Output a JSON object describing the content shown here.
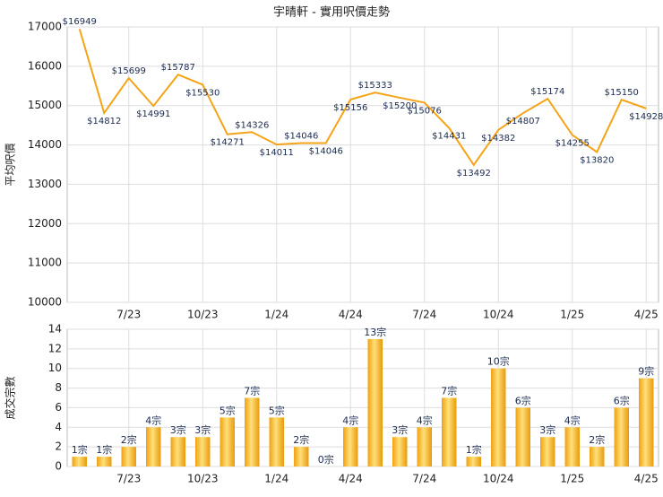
{
  "chart_data": [
    {
      "type": "line",
      "title": "宇晴軒 - 實用呎價走勢",
      "y_label": "平均呎價",
      "color": "#f5a418",
      "categories": [
        null,
        null,
        "7/23",
        null,
        null,
        "10/23",
        null,
        null,
        "1/24",
        null,
        null,
        "4/24",
        null,
        null,
        "7/24",
        null,
        null,
        "10/24",
        null,
        null,
        "1/25",
        null,
        null,
        "4/25"
      ],
      "values": [
        16949,
        14812,
        15699,
        14991,
        15787,
        15530,
        14271,
        14326,
        14011,
        14046,
        14046,
        15156,
        15333,
        15200,
        15076,
        14431,
        13492,
        14382,
        14807,
        15174,
        14255,
        13820,
        15150,
        14928
      ],
      "value_labels": [
        "$16949",
        "$14812",
        "$15699",
        "$14991",
        "$15787",
        "$15530",
        "$14271",
        "$14326",
        "$14011",
        "$14046",
        "$14046",
        "$15156",
        "$15333",
        "$15200",
        "$15076",
        "$14431",
        "$13492",
        "$14382",
        "$14807",
        "$15174",
        "$14255",
        "$13820",
        "$15150",
        "$14928"
      ],
      "ylim": [
        10000,
        17000
      ],
      "yticks": [
        10000,
        11000,
        12000,
        13000,
        14000,
        15000,
        16000,
        17000
      ],
      "grid": true
    },
    {
      "type": "bar",
      "y_label": "成交宗數",
      "color": "#f5b020",
      "categories": [
        null,
        null,
        "7/23",
        null,
        null,
        "10/23",
        null,
        null,
        "1/24",
        null,
        null,
        "4/24",
        null,
        null,
        "7/24",
        null,
        null,
        "10/24",
        null,
        null,
        "1/25",
        null,
        null,
        "4/25"
      ],
      "values": [
        1,
        1,
        2,
        4,
        3,
        3,
        5,
        7,
        5,
        2,
        0,
        4,
        13,
        3,
        4,
        7,
        1,
        10,
        6,
        3,
        4,
        2,
        6,
        9
      ],
      "value_labels": [
        "1宗",
        "1宗",
        "2宗",
        "4宗",
        "3宗",
        "3宗",
        "5宗",
        "7宗",
        "5宗",
        "2宗",
        "0宗",
        "4宗",
        "13宗",
        "3宗",
        "4宗",
        "7宗",
        "1宗",
        "10宗",
        "6宗",
        "3宗",
        "4宗",
        "2宗",
        "6宗",
        "9宗"
      ],
      "ylim": [
        0,
        14
      ],
      "yticks": [
        0,
        2,
        4,
        6,
        8,
        10,
        12,
        14
      ],
      "grid": true
    }
  ]
}
